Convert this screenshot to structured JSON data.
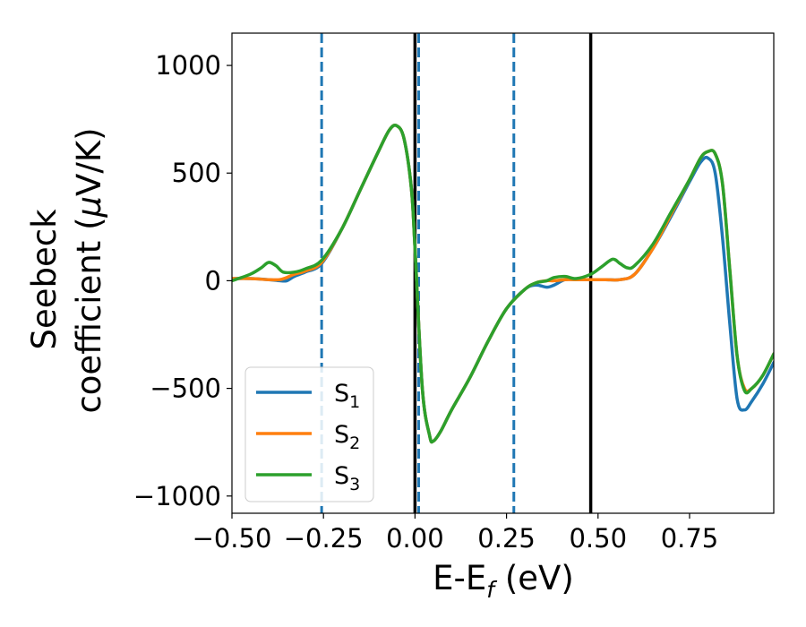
{
  "chart_data": {
    "type": "line",
    "title": "",
    "xlabel": "E-E",
    "xlabel_sub": "f",
    "xlabel_unit": " (eV)",
    "ylabel_line1": "Seebeck",
    "ylabel_line2": "coefficient  (",
    "ylabel_mu": "μ",
    "ylabel_unit": "V/K)",
    "xlim": [
      -0.5,
      0.98
    ],
    "ylim": [
      -1080,
      1150
    ],
    "xticks": [
      -0.5,
      -0.25,
      0.0,
      0.25,
      0.5,
      0.75
    ],
    "xtick_labels": [
      "−0.50",
      "−0.25",
      "0.00",
      "0.25",
      "0.50",
      "0.75"
    ],
    "yticks": [
      -1000,
      -500,
      0,
      500,
      1000
    ],
    "ytick_labels": [
      "−1000",
      "−500",
      "0",
      "500",
      "1000"
    ],
    "grid": false,
    "legend_position": "lower-left",
    "vlines": [
      {
        "x": -0.255,
        "style": "dashed",
        "color": "#1f77b4"
      },
      {
        "x": 0.01,
        "style": "dashed",
        "color": "#1f77b4"
      },
      {
        "x": 0.27,
        "style": "dashed",
        "color": "#1f77b4"
      },
      {
        "x": 0.0,
        "style": "solid",
        "color": "#000000"
      },
      {
        "x": 0.48,
        "style": "solid",
        "color": "#000000"
      }
    ],
    "series": [
      {
        "name": "S",
        "sub": "1",
        "color": "#1f77b4",
        "x": [
          -0.5,
          -0.45,
          -0.4,
          -0.37,
          -0.35,
          -0.33,
          -0.3,
          -0.255,
          -0.2,
          -0.15,
          -0.1,
          -0.07,
          -0.05,
          -0.03,
          -0.01,
          0.0,
          0.02,
          0.04,
          0.05,
          0.07,
          0.1,
          0.15,
          0.2,
          0.25,
          0.3,
          0.33,
          0.36,
          0.38,
          0.41,
          0.44,
          0.48,
          0.52,
          0.56,
          0.6,
          0.65,
          0.7,
          0.75,
          0.78,
          0.8,
          0.82,
          0.84,
          0.86,
          0.88,
          0.9,
          0.92,
          0.95,
          0.98
        ],
        "y": [
          10,
          10,
          5,
          0,
          0,
          20,
          40,
          80,
          240,
          420,
          600,
          700,
          720,
          660,
          430,
          150,
          -500,
          -720,
          -745,
          -700,
          -600,
          -450,
          -280,
          -130,
          -40,
          -20,
          -30,
          -20,
          5,
          5,
          5,
          5,
          5,
          30,
          150,
          300,
          460,
          550,
          570,
          500,
          200,
          -200,
          -550,
          -600,
          -560,
          -480,
          -380
        ]
      },
      {
        "name": "S",
        "sub": "2",
        "color": "#ff7f0e",
        "x": [
          -0.5,
          -0.45,
          -0.4,
          -0.37,
          -0.35,
          -0.33,
          -0.3,
          -0.255,
          -0.2,
          -0.15,
          -0.1,
          -0.07,
          -0.05,
          -0.03,
          -0.01,
          0.0,
          0.02,
          0.04,
          0.05,
          0.07,
          0.1,
          0.15,
          0.2,
          0.25,
          0.3,
          0.33,
          0.36,
          0.38,
          0.41,
          0.44,
          0.48,
          0.52,
          0.56,
          0.6,
          0.65,
          0.7,
          0.75,
          0.78,
          0.8,
          0.82,
          0.84,
          0.86,
          0.88,
          0.9,
          0.92,
          0.95,
          0.98
        ],
        "y": [
          10,
          10,
          5,
          5,
          15,
          30,
          45,
          85,
          240,
          420,
          600,
          700,
          720,
          660,
          430,
          150,
          -500,
          -720,
          -745,
          -700,
          -600,
          -450,
          -280,
          -130,
          -40,
          -10,
          0,
          0,
          5,
          5,
          5,
          5,
          5,
          30,
          150,
          310,
          470,
          570,
          600,
          590,
          450,
          50,
          -350,
          -500,
          -500,
          -440,
          -340
        ]
      },
      {
        "name": "S",
        "sub": "3",
        "color": "#2ca02c",
        "x": [
          -0.5,
          -0.45,
          -0.42,
          -0.4,
          -0.38,
          -0.36,
          -0.33,
          -0.3,
          -0.255,
          -0.2,
          -0.15,
          -0.1,
          -0.07,
          -0.05,
          -0.03,
          -0.01,
          0.0,
          0.02,
          0.04,
          0.05,
          0.07,
          0.1,
          0.15,
          0.2,
          0.25,
          0.3,
          0.33,
          0.36,
          0.38,
          0.41,
          0.44,
          0.48,
          0.51,
          0.54,
          0.56,
          0.58,
          0.6,
          0.65,
          0.7,
          0.75,
          0.78,
          0.8,
          0.82,
          0.84,
          0.86,
          0.88,
          0.9,
          0.92,
          0.95,
          0.98
        ],
        "y": [
          0,
          30,
          60,
          85,
          70,
          40,
          40,
          55,
          95,
          240,
          420,
          600,
          700,
          720,
          660,
          430,
          150,
          -500,
          -720,
          -745,
          -700,
          -600,
          -450,
          -280,
          -130,
          -40,
          -10,
          0,
          15,
          20,
          10,
          30,
          65,
          100,
          80,
          60,
          70,
          170,
          320,
          470,
          570,
          600,
          590,
          450,
          50,
          -350,
          -510,
          -500,
          -440,
          -340
        ]
      }
    ]
  }
}
